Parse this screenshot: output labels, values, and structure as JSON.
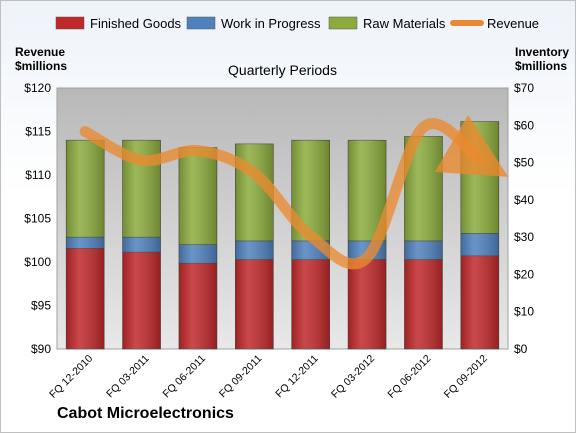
{
  "chart_data": {
    "type": "bar",
    "subtitle": "Quarterly Periods",
    "company": "Cabot Microelectronics",
    "y_left_label": [
      "Revenue",
      "$millions"
    ],
    "y_right_label": [
      "Inventory",
      "$millions"
    ],
    "categories": [
      "FQ 12-2010",
      "FQ 03-2011",
      "FQ 06-2011",
      "FQ 09-2011",
      "FQ 12-2011",
      "FQ 03-2012",
      "FQ 06-2012",
      "FQ 09-2012"
    ],
    "stacked": true,
    "series": [
      {
        "name": "Finished Goods",
        "axis": "right",
        "color": "#c0282a",
        "values": [
          27,
          26,
          23,
          24,
          24,
          24,
          24,
          25
        ]
      },
      {
        "name": "Work in Progress",
        "axis": "right",
        "color": "#4f81bd",
        "values": [
          3,
          4,
          5,
          5,
          5,
          5,
          5,
          6
        ]
      },
      {
        "name": "Raw Materials",
        "axis": "right",
        "color": "#8bab3d",
        "values": [
          26,
          26,
          26,
          26,
          27,
          27,
          28,
          30
        ]
      },
      {
        "name": "Revenue",
        "type": "line",
        "axis": "left",
        "color": "#ea8a30",
        "values": [
          115,
          111.7,
          112.8,
          110.2,
          103,
          100.5,
          115.5,
          111.7
        ]
      }
    ],
    "y_left": {
      "min": 90,
      "max": 120,
      "ticks": [
        90,
        95,
        100,
        105,
        110,
        115,
        120
      ],
      "tick_labels": [
        "$90",
        "$95",
        "$100",
        "$105",
        "$110",
        "$115",
        "$120"
      ]
    },
    "y_right": {
      "min": 0,
      "max": 70,
      "ticks": [
        0,
        10,
        20,
        30,
        40,
        50,
        60,
        70
      ],
      "tick_labels": [
        "$0",
        "$10",
        "$20",
        "$30",
        "$40",
        "$50",
        "$60",
        "$70"
      ]
    },
    "legend_position": "top",
    "grid": false
  }
}
